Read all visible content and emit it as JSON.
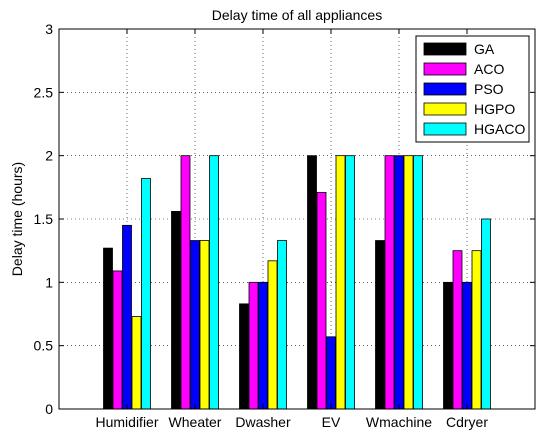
{
  "chart_data": {
    "type": "bar",
    "title": "Delay time of all appliances",
    "xlabel": "",
    "ylabel": "Delay time (hours)",
    "ylim": [
      0,
      3
    ],
    "yticks": [
      "0",
      "0.5",
      "1",
      "1.5",
      "2",
      "2.5",
      "3"
    ],
    "categories": [
      "Humidifier",
      "Wheater",
      "Dwasher",
      "EV",
      "Wmachine",
      "Cdryer"
    ],
    "grid": true,
    "legend_position": "top-right",
    "series": [
      {
        "name": "GA",
        "color": "#000000",
        "values": [
          1.27,
          1.56,
          0.83,
          2.0,
          1.33,
          1.0
        ]
      },
      {
        "name": "ACO",
        "color": "#ff00ff",
        "values": [
          1.09,
          2.0,
          1.0,
          1.71,
          2.0,
          1.25
        ]
      },
      {
        "name": "PSO",
        "color": "#0000ff",
        "values": [
          1.45,
          1.33,
          1.0,
          0.57,
          2.0,
          1.0
        ]
      },
      {
        "name": "HGPO",
        "color": "#ffff00",
        "values": [
          0.73,
          1.33,
          1.17,
          2.0,
          2.0,
          1.25
        ]
      },
      {
        "name": "HGACO",
        "color": "#00ffff",
        "values": [
          1.82,
          2.0,
          1.33,
          2.0,
          2.0,
          1.5
        ]
      }
    ]
  }
}
